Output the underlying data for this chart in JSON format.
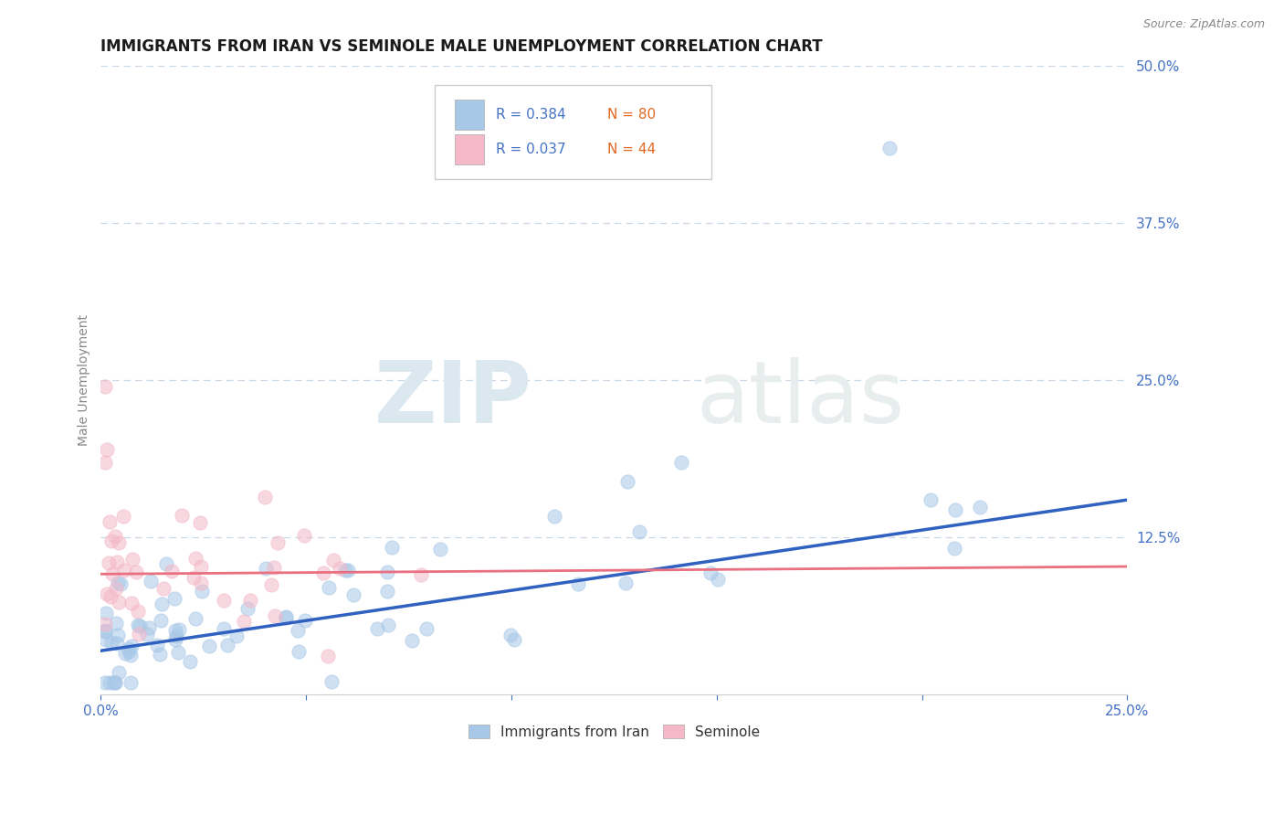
{
  "title": "IMMIGRANTS FROM IRAN VS SEMINOLE MALE UNEMPLOYMENT CORRELATION CHART",
  "source": "Source: ZipAtlas.com",
  "ylabel": "Male Unemployment",
  "xlim": [
    0.0,
    0.25
  ],
  "ylim": [
    0.0,
    0.5
  ],
  "ytick_positions": [
    0.125,
    0.25,
    0.375,
    0.5
  ],
  "ytick_labels": [
    "12.5%",
    "25.0%",
    "37.5%",
    "50.0%"
  ],
  "series1_color": "#a8c8e8",
  "series2_color": "#f4b8c8",
  "trend1_color": "#3060c0",
  "trend2_color": "#e87080",
  "background_color": "#ffffff",
  "grid_color": "#c8d8e8",
  "title_fontsize": 12,
  "axis_label_fontsize": 10,
  "tick_fontsize": 11,
  "blue_trend_start": 0.035,
  "blue_trend_end": 0.155,
  "pink_trend_start": 0.096,
  "pink_trend_end": 0.102
}
